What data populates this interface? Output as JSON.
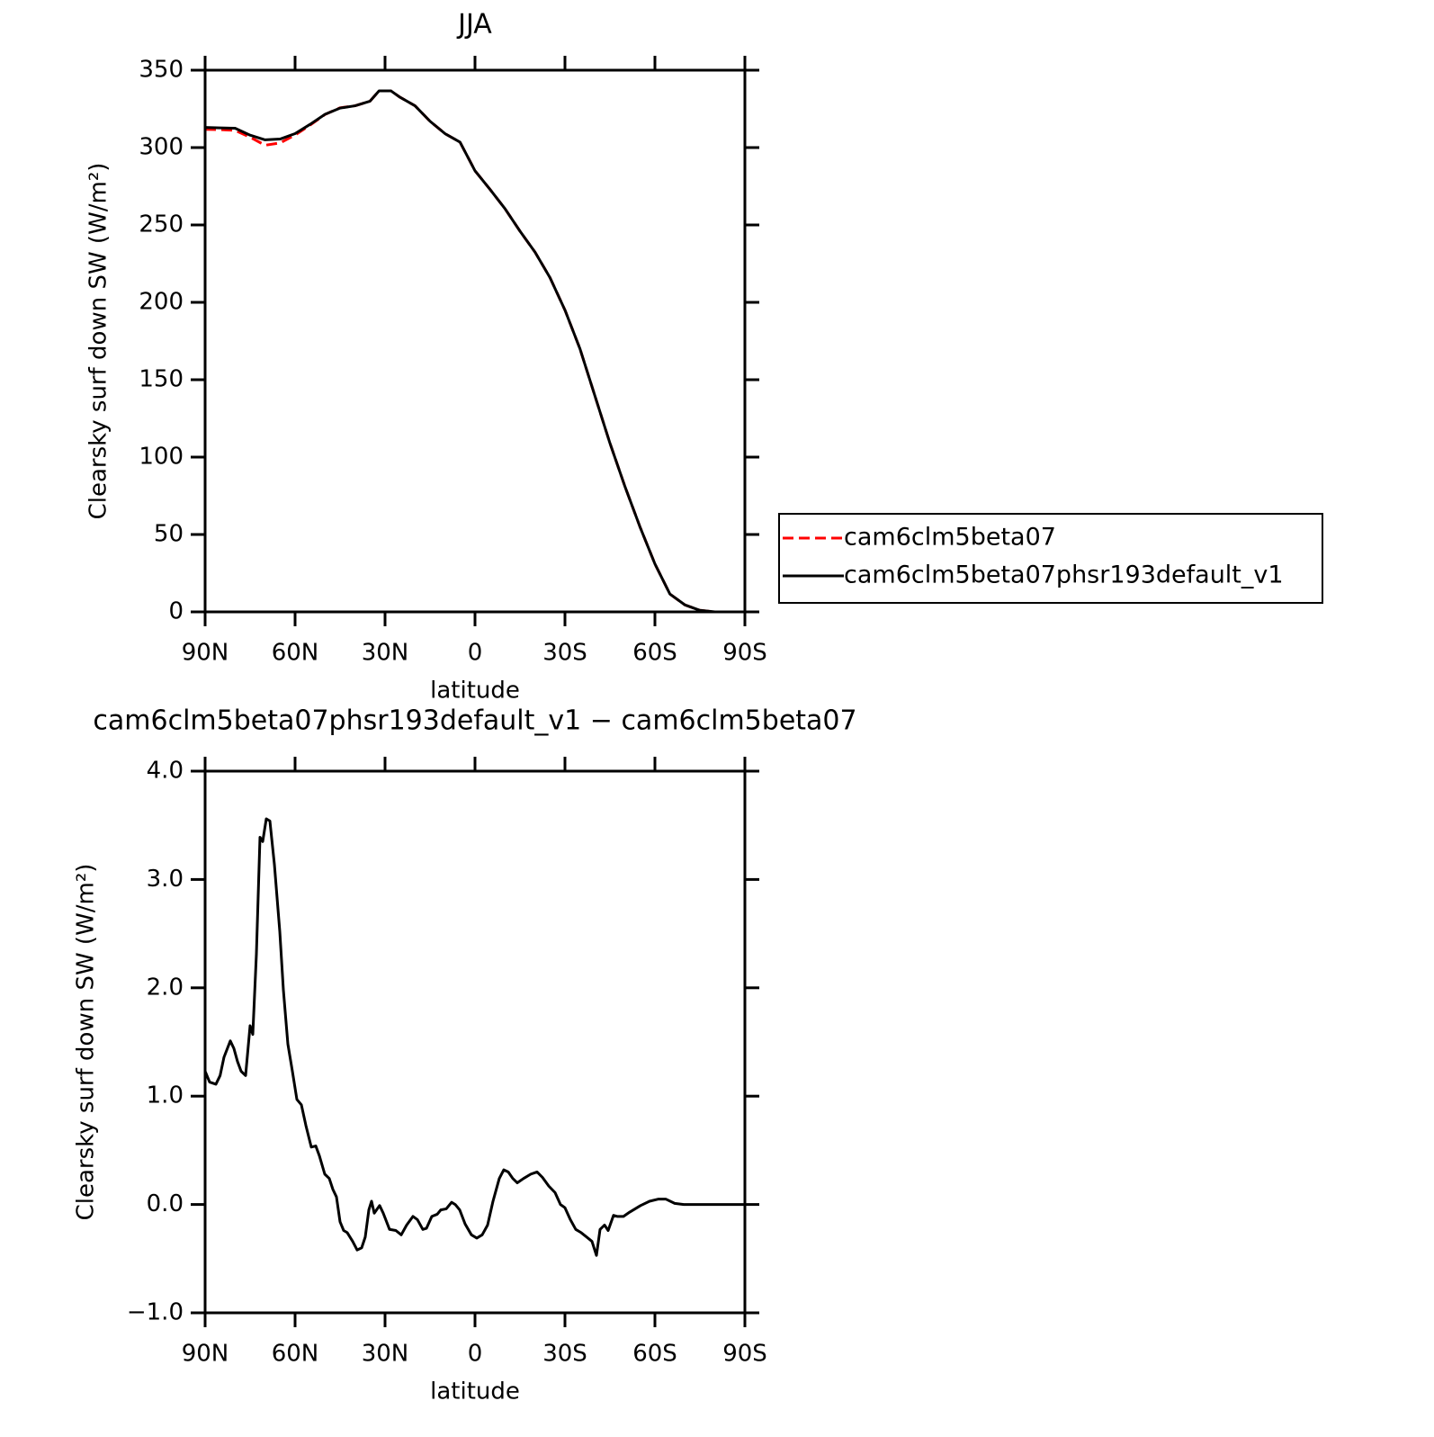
{
  "chart_data": [
    {
      "type": "line",
      "title": "JJA",
      "xlabel": "latitude",
      "ylabel": "Clearsky surf down SW (W/m²)",
      "x": [
        90,
        85,
        80,
        75,
        70,
        65,
        60,
        55,
        50,
        45,
        40,
        35,
        32,
        28,
        25,
        20,
        15,
        10,
        5,
        0,
        -5,
        -10,
        -15,
        -20,
        -25,
        -30,
        -35,
        -40,
        -45,
        -50,
        -55,
        -60,
        -65,
        -70,
        -75,
        -80,
        -85,
        -90
      ],
      "series": [
        {
          "name": "cam6clm5beta07",
          "color": "#ff0000",
          "style": "dashed",
          "values": [
            311.8,
            311.6,
            311.1,
            306.7,
            301.5,
            303,
            308.1,
            314.5,
            321.4,
            325.7,
            327,
            330,
            336.6,
            336.6,
            332.5,
            327,
            317,
            309,
            303.5,
            285,
            273,
            260.5,
            246,
            232.5,
            216,
            195,
            170,
            139.5,
            109,
            81,
            55,
            31,
            11.5,
            4.5,
            1,
            0,
            0,
            0
          ]
        },
        {
          "name": "cam6clm5beta07phsr193default_v1",
          "color": "#000000",
          "style": "solid",
          "values": [
            313,
            312.7,
            312.5,
            308,
            305,
            305.5,
            309,
            315,
            321.5,
            325.5,
            327,
            330,
            336.6,
            336.6,
            332.5,
            327,
            317,
            309,
            303.5,
            285,
            273,
            260.5,
            246,
            232.5,
            216,
            195,
            170,
            139.5,
            109,
            81,
            55,
            31,
            11.5,
            4.5,
            1,
            0,
            0,
            0
          ]
        }
      ],
      "xlim": [
        90,
        -90
      ],
      "xticks": [
        {
          "value": 90,
          "label": "90N"
        },
        {
          "value": 60,
          "label": "60N"
        },
        {
          "value": 30,
          "label": "30N"
        },
        0,
        {
          "value": -30,
          "label": "30S"
        },
        {
          "value": -60,
          "label": "60S"
        },
        {
          "value": -90,
          "label": "90S"
        }
      ],
      "ylim": [
        0,
        350
      ],
      "yticks": [
        0,
        50,
        100,
        150,
        200,
        250,
        300,
        350
      ],
      "legend": "right"
    },
    {
      "type": "line",
      "title": "cam6clm5beta07phsr193default_v1 − cam6clm5beta07",
      "xlabel": "latitude",
      "ylabel": "Clearsky surf down SW (W/m²)",
      "x": [
        90,
        88.5,
        86.4,
        85,
        83.7,
        81.6,
        80.4,
        79.2,
        78,
        76.5,
        75,
        74.1,
        72.9,
        71.7,
        70.8,
        69.6,
        68.4,
        66.9,
        65.1,
        63.9,
        62.4,
        60.9,
        59.4,
        57.9,
        56.4,
        54.6,
        53.1,
        51.9,
        50.1,
        48.6,
        47.4,
        46.2,
        45,
        43.8,
        42.6,
        40.8,
        39.3,
        37.8,
        36.6,
        35.4,
        34.5,
        33.6,
        31.8,
        30.6,
        28.5,
        26.4,
        24.6,
        22.8,
        20.7,
        19.2,
        17.4,
        16.2,
        14.4,
        12.6,
        11.4,
        9.6,
        7.8,
        6.6,
        5.1,
        3.3,
        1.2,
        -0.6,
        -2.4,
        -4.2,
        -6,
        -8.1,
        -9.6,
        -11.1,
        -12.6,
        -14.1,
        -16.2,
        -18.6,
        -20.7,
        -22.5,
        -24.6,
        -26.7,
        -28.5,
        -30,
        -31.8,
        -33.6,
        -35.4,
        -37.2,
        -39,
        -40.5,
        -41.7,
        -43.2,
        -44.4,
        -46.2,
        -47.4,
        -49.5,
        -51.6,
        -55.2,
        -58.2,
        -61.2,
        -63.6,
        -66.6,
        -69.6,
        -74.1,
        -78.6,
        -90
      ],
      "series": [
        {
          "color": "#000000",
          "style": "solid",
          "values": [
            1.23,
            1.13,
            1.11,
            1.19,
            1.36,
            1.51,
            1.44,
            1.32,
            1.23,
            1.19,
            1.65,
            1.57,
            2.31,
            3.39,
            3.35,
            3.56,
            3.54,
            3.14,
            2.52,
            1.98,
            1.48,
            1.23,
            0.97,
            0.92,
            0.73,
            0.53,
            0.54,
            0.45,
            0.28,
            0.24,
            0.14,
            0.07,
            -0.16,
            -0.24,
            -0.26,
            -0.34,
            -0.42,
            -0.4,
            -0.3,
            -0.05,
            0.03,
            -0.08,
            -0.01,
            -0.08,
            -0.23,
            -0.24,
            -0.28,
            -0.19,
            -0.11,
            -0.14,
            -0.23,
            -0.22,
            -0.11,
            -0.09,
            -0.05,
            -0.04,
            0.02,
            0,
            -0.05,
            -0.18,
            -0.28,
            -0.31,
            -0.28,
            -0.19,
            0.03,
            0.24,
            0.32,
            0.3,
            0.24,
            0.2,
            0.24,
            0.28,
            0.3,
            0.25,
            0.17,
            0.11,
            0,
            -0.03,
            -0.14,
            -0.23,
            -0.26,
            -0.3,
            -0.34,
            -0.47,
            -0.23,
            -0.19,
            -0.24,
            -0.1,
            -0.11,
            -0.11,
            -0.07,
            -0.01,
            0.03,
            0.05,
            0.05,
            0.01,
            0,
            0,
            0,
            0
          ]
        }
      ],
      "xlim": [
        90,
        -90
      ],
      "xticks": [
        {
          "value": 90,
          "label": "90N"
        },
        {
          "value": 60,
          "label": "60N"
        },
        {
          "value": 30,
          "label": "30N"
        },
        0,
        {
          "value": -30,
          "label": "30S"
        },
        {
          "value": -60,
          "label": "60S"
        },
        {
          "value": -90,
          "label": "90S"
        }
      ],
      "ylim": [
        -1,
        4
      ],
      "yticks": [
        {
          "value": -1,
          "label": "−1.0"
        },
        {
          "value": 0,
          "label": "0.0"
        },
        {
          "value": 1,
          "label": "1.0"
        },
        {
          "value": 2,
          "label": "2.0"
        },
        {
          "value": 3,
          "label": "3.0"
        },
        {
          "value": 4,
          "label": "4.0"
        }
      ]
    }
  ]
}
